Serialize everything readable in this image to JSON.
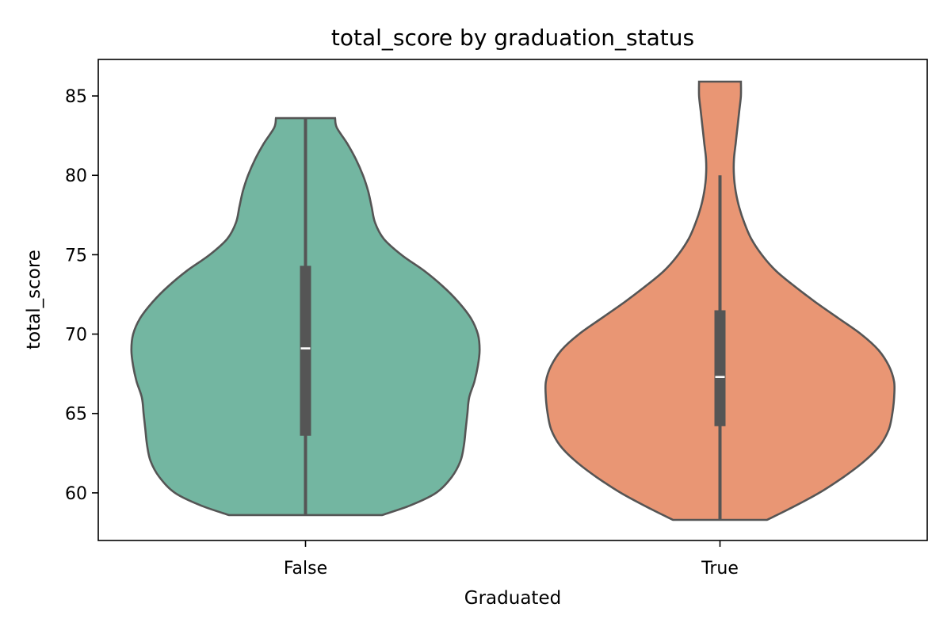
{
  "chart_data": {
    "type": "violin",
    "title": "total_score by graduation_status",
    "xlabel": "Graduated",
    "ylabel": "total_score",
    "categories": [
      "False",
      "True"
    ],
    "ylim": [
      57,
      87.3
    ],
    "yticks": [
      60,
      65,
      70,
      75,
      80,
      85
    ],
    "grid": false,
    "legend": "none",
    "series": [
      {
        "category": "False",
        "color": "#73b6a1",
        "min": 58.6,
        "max": 83.6,
        "q1": 63.6,
        "median": 69.1,
        "q3": 74.3,
        "whisker_low": 58.6,
        "whisker_high": 83.6,
        "density": [
          {
            "y": 58.6,
            "w": 0.44
          },
          {
            "y": 59.2,
            "w": 0.6
          },
          {
            "y": 60.0,
            "w": 0.75
          },
          {
            "y": 61.0,
            "w": 0.84
          },
          {
            "y": 62.0,
            "w": 0.89
          },
          {
            "y": 63.0,
            "w": 0.91
          },
          {
            "y": 64.0,
            "w": 0.92
          },
          {
            "y": 65.0,
            "w": 0.93
          },
          {
            "y": 66.0,
            "w": 0.94
          },
          {
            "y": 67.0,
            "w": 0.97
          },
          {
            "y": 68.0,
            "w": 0.99
          },
          {
            "y": 69.0,
            "w": 1.0
          },
          {
            "y": 70.0,
            "w": 0.99
          },
          {
            "y": 71.0,
            "w": 0.95
          },
          {
            "y": 72.0,
            "w": 0.88
          },
          {
            "y": 73.0,
            "w": 0.79
          },
          {
            "y": 74.0,
            "w": 0.68
          },
          {
            "y": 75.0,
            "w": 0.55
          },
          {
            "y": 76.0,
            "w": 0.45
          },
          {
            "y": 77.0,
            "w": 0.4
          },
          {
            "y": 78.0,
            "w": 0.38
          },
          {
            "y": 79.0,
            "w": 0.36
          },
          {
            "y": 80.0,
            "w": 0.33
          },
          {
            "y": 81.0,
            "w": 0.29
          },
          {
            "y": 82.0,
            "w": 0.24
          },
          {
            "y": 83.0,
            "w": 0.18
          },
          {
            "y": 83.6,
            "w": 0.17
          }
        ]
      },
      {
        "category": "True",
        "color": "#e99674",
        "min": 58.3,
        "max": 85.9,
        "q1": 64.2,
        "median": 67.3,
        "q3": 71.5,
        "whisker_low": 58.3,
        "whisker_high": 80.0,
        "density": [
          {
            "y": 58.3,
            "w": 0.27
          },
          {
            "y": 59.0,
            "w": 0.4
          },
          {
            "y": 60.0,
            "w": 0.57
          },
          {
            "y": 61.0,
            "w": 0.71
          },
          {
            "y": 62.0,
            "w": 0.83
          },
          {
            "y": 63.0,
            "w": 0.92
          },
          {
            "y": 64.0,
            "w": 0.97
          },
          {
            "y": 65.0,
            "w": 0.99
          },
          {
            "y": 66.0,
            "w": 1.0
          },
          {
            "y": 67.0,
            "w": 1.0
          },
          {
            "y": 68.0,
            "w": 0.97
          },
          {
            "y": 69.0,
            "w": 0.91
          },
          {
            "y": 70.0,
            "w": 0.81
          },
          {
            "y": 71.0,
            "w": 0.68
          },
          {
            "y": 72.0,
            "w": 0.55
          },
          {
            "y": 73.0,
            "w": 0.43
          },
          {
            "y": 74.0,
            "w": 0.32
          },
          {
            "y": 75.0,
            "w": 0.24
          },
          {
            "y": 76.0,
            "w": 0.18
          },
          {
            "y": 77.0,
            "w": 0.14
          },
          {
            "y": 78.0,
            "w": 0.11
          },
          {
            "y": 79.0,
            "w": 0.09
          },
          {
            "y": 80.0,
            "w": 0.08
          },
          {
            "y": 81.0,
            "w": 0.08
          },
          {
            "y": 82.0,
            "w": 0.09
          },
          {
            "y": 83.0,
            "w": 0.1
          },
          {
            "y": 84.0,
            "w": 0.11
          },
          {
            "y": 85.0,
            "w": 0.12
          },
          {
            "y": 85.9,
            "w": 0.12
          }
        ]
      }
    ]
  }
}
